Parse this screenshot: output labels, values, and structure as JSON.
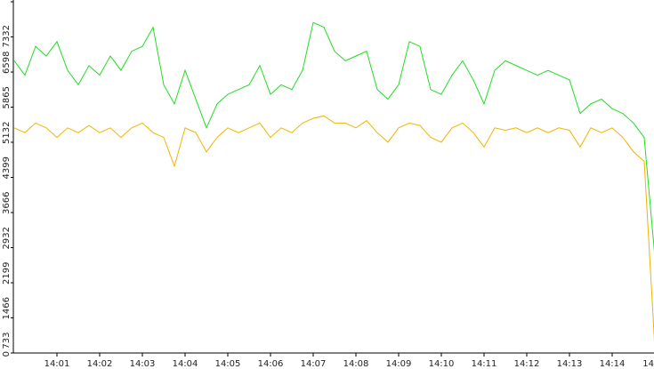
{
  "chart_data": {
    "type": "line",
    "x": [
      0,
      0.25,
      0.5,
      0.75,
      1,
      1.25,
      1.5,
      1.75,
      2,
      2.25,
      2.5,
      2.75,
      3,
      3.25,
      3.5,
      3.75,
      4,
      4.25,
      4.5,
      4.75,
      5,
      5.25,
      5.5,
      5.75,
      6,
      6.25,
      6.5,
      6.75,
      7,
      7.25,
      7.5,
      7.75,
      8,
      8.25,
      8.5,
      8.75,
      9,
      9.25,
      9.5,
      9.75,
      10,
      10.25,
      10.5,
      10.75,
      11,
      11.25,
      11.5,
      11.75,
      12,
      12.25,
      12.5,
      12.75,
      13,
      13.25,
      13.5,
      13.75,
      14,
      14.25,
      14.5,
      14.75,
      15
    ],
    "series": [
      {
        "color": "#22dd22",
        "values": [
          6100,
          5800,
          6400,
          6200,
          6500,
          5900,
          5600,
          6000,
          5800,
          6200,
          5900,
          6300,
          6400,
          6800,
          5600,
          5200,
          5900,
          5300,
          4700,
          5200,
          5400,
          5500,
          5600,
          6000,
          5400,
          5600,
          5500,
          5900,
          6900,
          6800,
          6300,
          6100,
          6200,
          6300,
          5500,
          5300,
          5600,
          6500,
          6400,
          5500,
          5400,
          5800,
          6100,
          5700,
          5200,
          5900,
          6100,
          6000,
          5900,
          5800,
          5900,
          5800,
          5700,
          5000,
          5200,
          5300,
          5100,
          5000,
          4800,
          4500,
          2000
        ]
      },
      {
        "color": "#f0b400",
        "values": [
          4700,
          4600,
          4800,
          4700,
          4500,
          4700,
          4600,
          4750,
          4600,
          4700,
          4500,
          4700,
          4800,
          4600,
          4500,
          3900,
          4700,
          4600,
          4200,
          4500,
          4700,
          4600,
          4700,
          4800,
          4500,
          4700,
          4600,
          4800,
          4900,
          4950,
          4800,
          4800,
          4700,
          4850,
          4600,
          4400,
          4700,
          4800,
          4750,
          4500,
          4400,
          4700,
          4800,
          4600,
          4300,
          4700,
          4650,
          4700,
          4600,
          4700,
          4600,
          4700,
          4650,
          4300,
          4700,
          4600,
          4700,
          4500,
          4200,
          4000,
          100
        ]
      }
    ],
    "xlim": [
      0,
      15
    ],
    "xticks": [
      {
        "value": 1,
        "label": "14:01"
      },
      {
        "value": 2,
        "label": "14:02"
      },
      {
        "value": 3,
        "label": "14:03"
      },
      {
        "value": 4,
        "label": "14:04"
      },
      {
        "value": 5,
        "label": "14:05"
      },
      {
        "value": 6,
        "label": "14:06"
      },
      {
        "value": 7,
        "label": "14:07"
      },
      {
        "value": 8,
        "label": "14:08"
      },
      {
        "value": 9,
        "label": "14:09"
      },
      {
        "value": 10,
        "label": "14:10"
      },
      {
        "value": 11,
        "label": "14:11"
      },
      {
        "value": 12,
        "label": "14:12"
      },
      {
        "value": 13,
        "label": "14:13"
      },
      {
        "value": 14,
        "label": "14:14"
      },
      {
        "value": 15,
        "label": "14"
      }
    ],
    "ylim": [
      0,
      7332
    ],
    "yticks": [
      0,
      733,
      1466,
      2199,
      2932,
      3666,
      4399,
      5132,
      5865,
      6598,
      7332
    ]
  }
}
